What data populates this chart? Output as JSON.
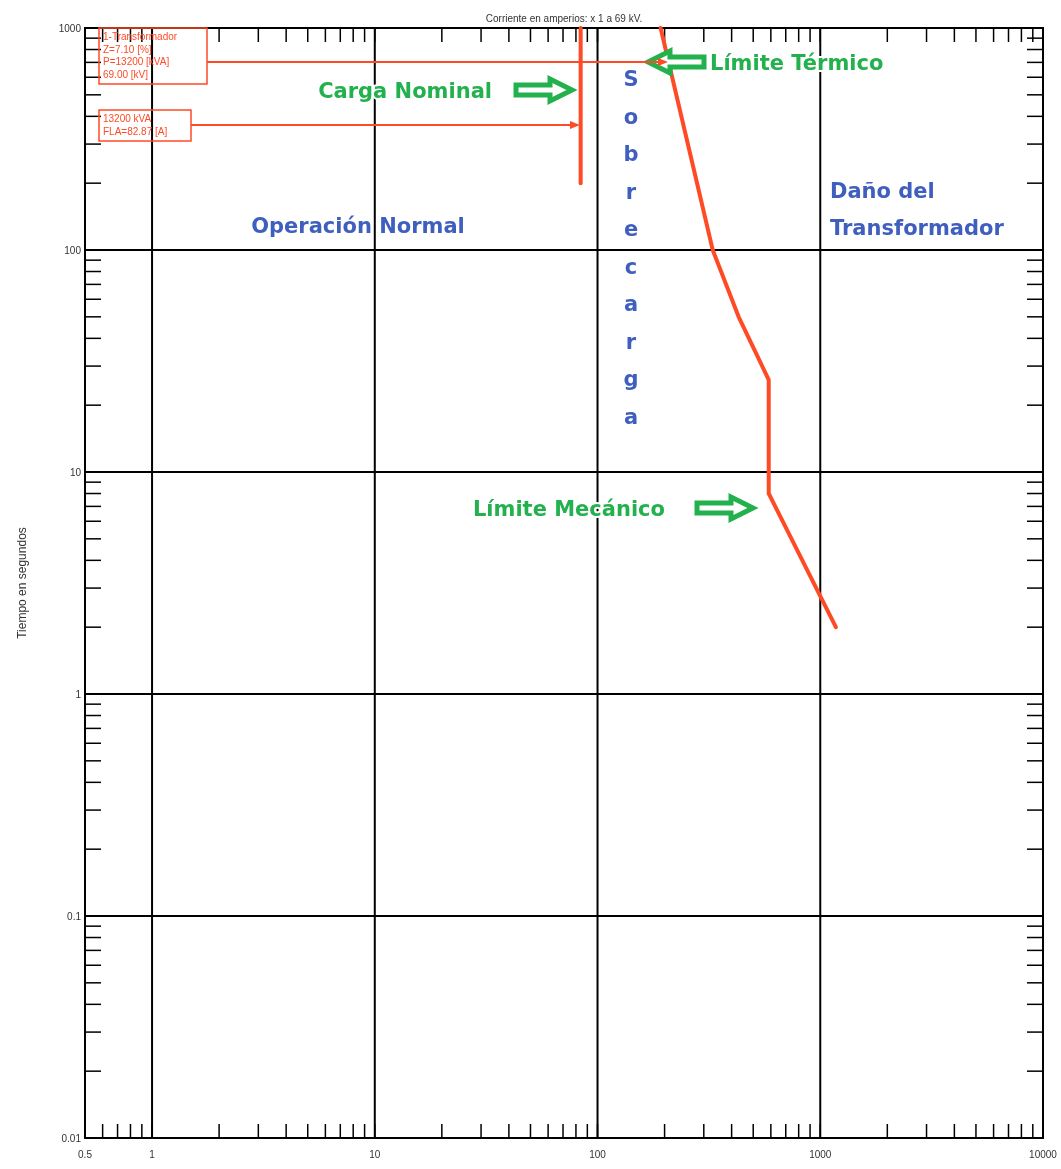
{
  "chart_data": {
    "type": "line",
    "xlabel": "Corriente en amperios: x 1 a 69 kV.",
    "ylabel": "Tiempo en segundos",
    "log": "xy",
    "xlim": [
      0.5,
      10000
    ],
    "ylim": [
      0.01,
      1000
    ],
    "xticks": [
      0.5,
      {
        "value": 0.6,
        "label": null
      },
      {
        "value": 0.7,
        "label": null
      },
      {
        "value": 0.8,
        "label": null
      },
      {
        "value": 0.9,
        "label": null
      },
      1,
      {
        "value": 2,
        "label": null
      },
      {
        "value": 3,
        "label": null
      },
      {
        "value": 4,
        "label": null
      },
      {
        "value": 5,
        "label": null
      },
      {
        "value": 6,
        "label": null
      },
      {
        "value": 7,
        "label": null
      },
      {
        "value": 8,
        "label": null
      },
      {
        "value": 9,
        "label": null
      },
      10,
      {
        "value": 20,
        "label": null
      },
      {
        "value": 30,
        "label": null
      },
      {
        "value": 40,
        "label": null
      },
      {
        "value": 50,
        "label": null
      },
      {
        "value": 60,
        "label": null
      },
      {
        "value": 70,
        "label": null
      },
      {
        "value": 80,
        "label": null
      },
      {
        "value": 90,
        "label": null
      },
      100,
      {
        "value": 200,
        "label": null
      },
      {
        "value": 300,
        "label": null
      },
      {
        "value": 400,
        "label": null
      },
      {
        "value": 500,
        "label": null
      },
      {
        "value": 600,
        "label": null
      },
      {
        "value": 700,
        "label": null
      },
      {
        "value": 800,
        "label": null
      },
      {
        "value": 900,
        "label": null
      },
      1000,
      {
        "value": 2000,
        "label": null
      },
      {
        "value": 3000,
        "label": null
      },
      {
        "value": 4000,
        "label": null
      },
      {
        "value": 5000,
        "label": null
      },
      {
        "value": 6000,
        "label": null
      },
      {
        "value": 7000,
        "label": null
      },
      {
        "value": 8000,
        "label": null
      },
      {
        "value": 9000,
        "label": null
      },
      10000
    ],
    "yticks": [
      0.01,
      {
        "value": 0.02,
        "label": null
      },
      {
        "value": 0.03,
        "label": null
      },
      {
        "value": 0.04,
        "label": null
      },
      {
        "value": 0.05,
        "label": null
      },
      {
        "value": 0.06,
        "label": null
      },
      {
        "value": 0.07,
        "label": null
      },
      {
        "value": 0.08,
        "label": null
      },
      {
        "value": 0.09,
        "label": null
      },
      0.1,
      {
        "value": 0.2,
        "label": null
      },
      {
        "value": 0.3,
        "label": null
      },
      {
        "value": 0.4,
        "label": null
      },
      {
        "value": 0.5,
        "label": null
      },
      {
        "value": 0.6,
        "label": null
      },
      {
        "value": 0.7,
        "label": null
      },
      {
        "value": 0.8,
        "label": null
      },
      {
        "value": 0.9,
        "label": null
      },
      1,
      {
        "value": 2,
        "label": null
      },
      {
        "value": 3,
        "label": null
      },
      {
        "value": 4,
        "label": null
      },
      {
        "value": 5,
        "label": null
      },
      {
        "value": 6,
        "label": null
      },
      {
        "value": 7,
        "label": null
      },
      {
        "value": 8,
        "label": null
      },
      {
        "value": 9,
        "label": null
      },
      10,
      {
        "value": 20,
        "label": null
      },
      {
        "value": 30,
        "label": null
      },
      {
        "value": 40,
        "label": null
      },
      {
        "value": 50,
        "label": null
      },
      {
        "value": 60,
        "label": null
      },
      {
        "value": 70,
        "label": null
      },
      {
        "value": 80,
        "label": null
      },
      {
        "value": 90,
        "label": null
      },
      100,
      {
        "value": 200,
        "label": null
      },
      {
        "value": 300,
        "label": null
      },
      {
        "value": 400,
        "label": null
      },
      {
        "value": 500,
        "label": null
      },
      {
        "value": 600,
        "label": null
      },
      {
        "value": 700,
        "label": null
      },
      {
        "value": 800,
        "label": null
      },
      {
        "value": 900,
        "label": null
      },
      1000
    ],
    "grid": true,
    "series": [
      {
        "color": "#ff4a26",
        "x": [
          84,
          84
        ],
        "values": [
          1000,
          200
        ]
      },
      {
        "color": "#ff4a26",
        "x": [
          192,
          329,
          430,
          587,
          587,
          1175
        ],
        "values": [
          1000,
          100,
          50,
          26,
          8,
          2
        ]
      }
    ],
    "annotations": [
      "Carga Nominal",
      "Límite Térmico",
      "Límite Mecánico",
      "Operación Normal",
      "Sobrecarga",
      "Daño del Transformador",
      "1-Transformador\nZ=7.10 [%]\nP=13200 [kVA]\n69.00 [kV]",
      "13200 kVA\nFLA=82.87 [A]"
    ]
  }
}
